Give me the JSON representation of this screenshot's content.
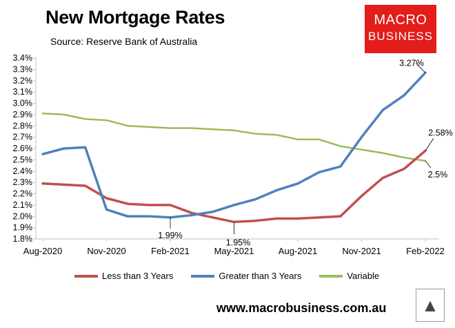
{
  "header": {
    "title": "New Mortgage Rates",
    "subtitle": "Source: Reserve Bank of Australia"
  },
  "logo": {
    "line1": "MACRO",
    "line2": "BUSINESS"
  },
  "footer": {
    "url": "www.macrobusiness.com.au",
    "icon": "wolf-head-icon"
  },
  "chart_data": {
    "type": "line",
    "title": "New Mortgage Rates",
    "xlabel": "",
    "ylabel": "",
    "ylim": [
      1.8,
      3.4
    ],
    "y_ticks": [
      "1.8%",
      "1.9%",
      "2.0%",
      "2.1%",
      "2.2%",
      "2.3%",
      "2.4%",
      "2.5%",
      "2.6%",
      "2.7%",
      "2.8%",
      "2.9%",
      "3.0%",
      "3.1%",
      "3.2%",
      "3.3%",
      "3.4%"
    ],
    "x_ticks": [
      "Aug-2020",
      "Nov-2020",
      "Feb-2021",
      "May-2021",
      "Aug-2021",
      "Nov-2021",
      "Feb-2022"
    ],
    "x": [
      "Aug-2020",
      "Sep-2020",
      "Oct-2020",
      "Nov-2020",
      "Dec-2020",
      "Jan-2021",
      "Feb-2021",
      "Mar-2021",
      "Apr-2021",
      "May-2021",
      "Jun-2021",
      "Jul-2021",
      "Aug-2021",
      "Sep-2021",
      "Oct-2021",
      "Nov-2021",
      "Dec-2021",
      "Jan-2022",
      "Feb-2022"
    ],
    "grid": false,
    "legend_position": "bottom",
    "series": [
      {
        "name": "Less than 3 Years",
        "color": "#c0504d",
        "values": [
          2.29,
          2.28,
          2.27,
          2.16,
          2.11,
          2.1,
          2.1,
          2.03,
          1.99,
          1.95,
          1.96,
          1.98,
          1.98,
          1.99,
          2.0,
          2.18,
          2.34,
          2.42,
          2.58
        ]
      },
      {
        "name": "Greater than 3 Years",
        "color": "#4f81bd",
        "values": [
          2.55,
          2.6,
          2.61,
          2.06,
          2.0,
          2.0,
          1.99,
          2.01,
          2.04,
          2.1,
          2.15,
          2.23,
          2.29,
          2.39,
          2.44,
          2.7,
          2.94,
          3.07,
          3.27
        ]
      },
      {
        "name": "Variable",
        "color": "#9bbb59",
        "values": [
          2.91,
          2.9,
          2.86,
          2.85,
          2.8,
          2.79,
          2.78,
          2.78,
          2.77,
          2.76,
          2.73,
          2.72,
          2.68,
          2.68,
          2.62,
          2.59,
          2.56,
          2.52,
          2.49
        ]
      }
    ],
    "annotations": [
      {
        "text": "3.27%",
        "series": 1,
        "index": 18
      },
      {
        "text": "2.58%",
        "series": 0,
        "index": 18
      },
      {
        "text": "2.5%",
        "series": 2,
        "index": 18
      },
      {
        "text": "1.99%",
        "series": 1,
        "index": 6
      },
      {
        "text": "1.95%",
        "series": 0,
        "index": 9
      }
    ]
  }
}
